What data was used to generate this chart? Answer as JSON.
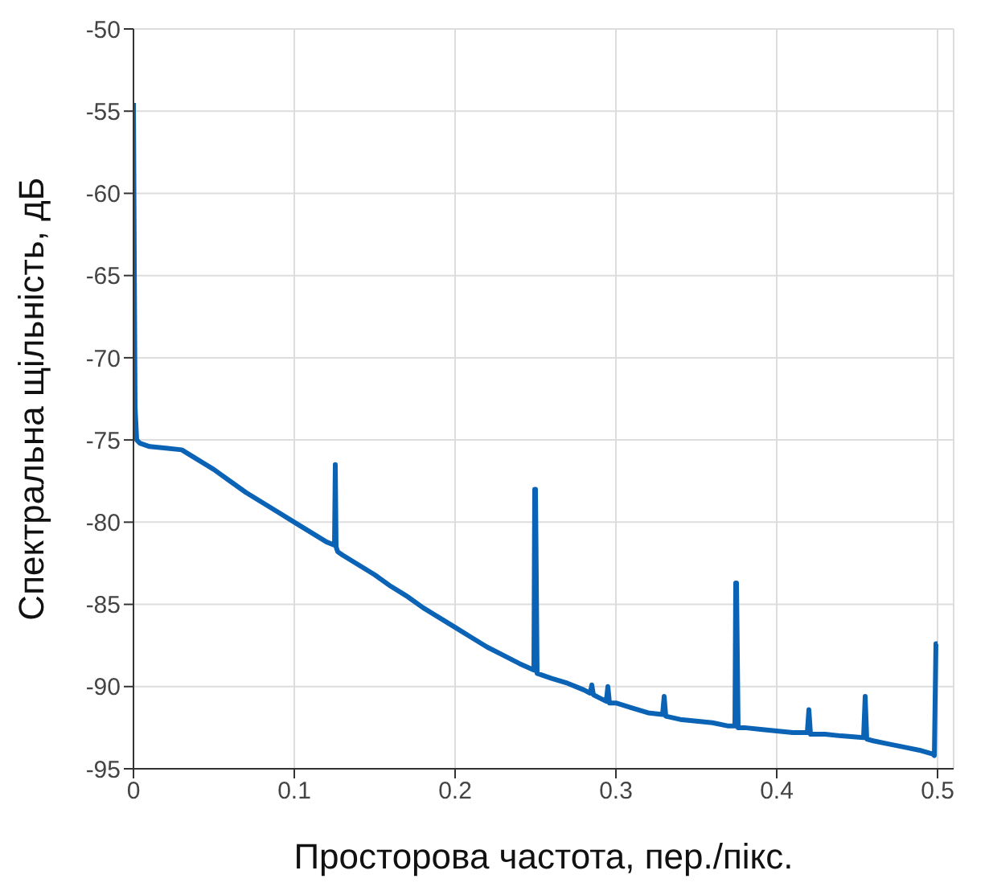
{
  "chart_data": {
    "type": "line",
    "xlabel": "Просторова частота, пер./пікс.",
    "ylabel": "Спектральна щільність, дБ",
    "xlim": [
      0,
      0.51
    ],
    "xticks": [
      0,
      0.1,
      0.2,
      0.3,
      0.4,
      0.5
    ],
    "ylim": [
      -95,
      -50
    ],
    "yticks": [
      -95,
      -90,
      -85,
      -80,
      -75,
      -70,
      -65,
      -60,
      -55,
      -50
    ],
    "grid": true,
    "marker": "none",
    "line_style": "solid",
    "series": [
      {
        "color": "#0b63b5",
        "x": [
          0,
          0.0005,
          0.001,
          0.002,
          0.004,
          0.01,
          0.02,
          0.03,
          0.04,
          0.05,
          0.06,
          0.07,
          0.08,
          0.09,
          0.1,
          0.11,
          0.12,
          0.125,
          0.1255,
          0.126,
          0.127,
          0.13,
          0.14,
          0.15,
          0.16,
          0.17,
          0.18,
          0.19,
          0.2,
          0.21,
          0.22,
          0.23,
          0.24,
          0.249,
          0.2495,
          0.25,
          0.251,
          0.26,
          0.27,
          0.28,
          0.284,
          0.285,
          0.286,
          0.29,
          0.294,
          0.295,
          0.296,
          0.3,
          0.31,
          0.32,
          0.329,
          0.33,
          0.331,
          0.34,
          0.35,
          0.36,
          0.37,
          0.374,
          0.3745,
          0.375,
          0.376,
          0.38,
          0.39,
          0.4,
          0.41,
          0.419,
          0.42,
          0.421,
          0.43,
          0.44,
          0.454,
          0.455,
          0.456,
          0.46,
          0.47,
          0.48,
          0.49,
          0.497,
          0.498,
          0.499,
          0.5
        ],
        "values": [
          -54.5,
          -64,
          -73,
          -75,
          -75.2,
          -75.4,
          -75.5,
          -75.6,
          -76.2,
          -76.8,
          -77.5,
          -78.2,
          -78.8,
          -79.4,
          -80,
          -80.6,
          -81.2,
          -81.4,
          -76.5,
          -81.5,
          -81.8,
          -82,
          -82.6,
          -83.2,
          -83.9,
          -84.5,
          -85.2,
          -85.8,
          -86.4,
          -87,
          -87.6,
          -88.1,
          -88.6,
          -89,
          -78,
          -78,
          -89.2,
          -89.5,
          -89.8,
          -90.2,
          -90.4,
          -89.9,
          -90.5,
          -90.7,
          -90.9,
          -90,
          -91,
          -91,
          -91.3,
          -91.6,
          -91.7,
          -90.6,
          -91.8,
          -92,
          -92.1,
          -92.2,
          -92.4,
          -92.4,
          -83.7,
          -83.7,
          -92.5,
          -92.5,
          -92.6,
          -92.7,
          -92.8,
          -92.8,
          -91.4,
          -92.9,
          -92.9,
          -93,
          -93.1,
          -90.6,
          -93.2,
          -93.3,
          -93.5,
          -93.7,
          -93.9,
          -94.1,
          -94.2,
          -87.4,
          -87.4
        ]
      }
    ]
  }
}
